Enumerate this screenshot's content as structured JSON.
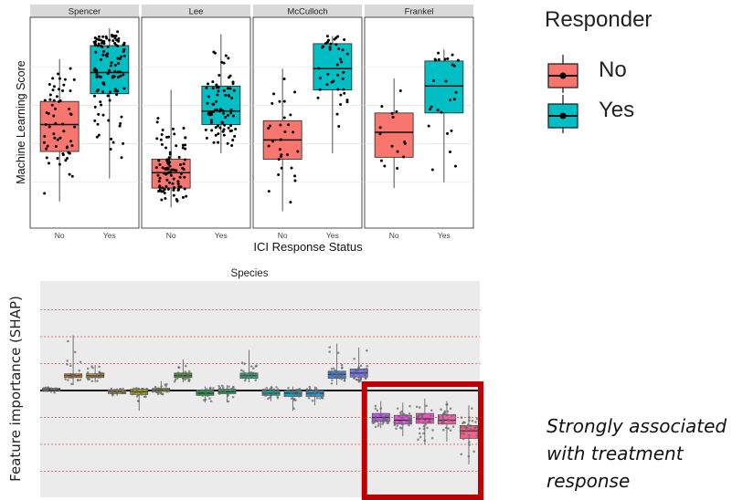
{
  "chart_data": [
    {
      "type": "box",
      "ylabel": "Machine Learning Score",
      "xlabel": "ICI Response Status",
      "panels": [
        {
          "name": "Spencer",
          "groups": [
            {
              "x": "No",
              "min": 0.1,
              "q1": 0.36,
              "median": 0.5,
              "q3": 0.62,
              "max": 0.84,
              "n": 60
            },
            {
              "x": "Yes",
              "min": 0.22,
              "q1": 0.66,
              "median": 0.77,
              "q3": 0.91,
              "max": 1.0,
              "n": 110
            }
          ]
        },
        {
          "name": "Lee",
          "groups": [
            {
              "x": "No",
              "min": 0.07,
              "q1": 0.17,
              "median": 0.25,
              "q3": 0.32,
              "max": 0.68,
              "n": 95
            },
            {
              "x": "Yes",
              "min": 0.35,
              "q1": 0.5,
              "median": 0.57,
              "q3": 0.7,
              "max": 0.97,
              "n": 80
            }
          ]
        },
        {
          "name": "McCulloch",
          "groups": [
            {
              "x": "No",
              "min": 0.05,
              "q1": 0.32,
              "median": 0.42,
              "q3": 0.52,
              "max": 0.79,
              "n": 30
            },
            {
              "x": "Yes",
              "min": 0.35,
              "q1": 0.68,
              "median": 0.79,
              "q3": 0.92,
              "max": 0.96,
              "n": 40
            }
          ]
        },
        {
          "name": "Frankel",
          "groups": [
            {
              "x": "No",
              "min": 0.17,
              "q1": 0.33,
              "median": 0.46,
              "q3": 0.56,
              "max": 0.74,
              "n": 15
            },
            {
              "x": "Yes",
              "min": 0.2,
              "q1": 0.56,
              "median": 0.7,
              "q3": 0.83,
              "max": 0.89,
              "n": 25
            }
          ]
        }
      ],
      "legend": {
        "title": "Responder",
        "position": "right",
        "entries": [
          {
            "label": "No",
            "color": "#F8766D"
          },
          {
            "label": "Yes",
            "color": "#00BFC4"
          }
        ]
      },
      "grid": true
    },
    {
      "type": "box",
      "title": "Species",
      "ylabel": "Feature importance (SHAP)",
      "xlabel": "",
      "baseline": 0,
      "series": [
        {
          "color": "#E87F6E",
          "median": 0.05,
          "q1": 0.02,
          "q3": 0.08,
          "min": -0.1,
          "max": 0.12
        },
        {
          "color": "#E0831E",
          "median": 0.55,
          "q1": 0.48,
          "q3": 0.62,
          "min": 0.2,
          "max": 2.05
        },
        {
          "color": "#D9901A",
          "median": 0.55,
          "q1": 0.48,
          "q3": 0.62,
          "min": 0.3,
          "max": 0.95
        },
        {
          "color": "#B8A11A",
          "median": -0.05,
          "q1": -0.12,
          "q3": 0.02,
          "min": -0.2,
          "max": 0.08
        },
        {
          "color": "#A4A800",
          "median": -0.05,
          "q1": -0.15,
          "q3": 0.05,
          "min": -0.75,
          "max": 0.1
        },
        {
          "color": "#7CAE00",
          "median": 0.02,
          "q1": -0.04,
          "q3": 0.08,
          "min": -0.15,
          "max": 0.35
        },
        {
          "color": "#3BA71E",
          "median": 0.55,
          "q1": 0.48,
          "q3": 0.65,
          "min": 0.3,
          "max": 1.15
        },
        {
          "color": "#00B22E",
          "median": -0.1,
          "q1": -0.18,
          "q3": 0.02,
          "min": -0.45,
          "max": 0.15
        },
        {
          "color": "#18B35A",
          "median": -0.05,
          "q1": -0.12,
          "q3": 0.05,
          "min": -0.45,
          "max": 0.2
        },
        {
          "color": "#19B98B",
          "median": 0.55,
          "q1": 0.45,
          "q3": 0.65,
          "min": 0.3,
          "max": 1.5
        },
        {
          "color": "#00B4B0",
          "median": -0.1,
          "q1": -0.18,
          "q3": 0.0,
          "min": -0.4,
          "max": 0.15
        },
        {
          "color": "#00A8D4",
          "median": -0.1,
          "q1": -0.22,
          "q3": 0.0,
          "min": -0.75,
          "max": 0.15
        },
        {
          "color": "#1E9EE8",
          "median": -0.1,
          "q1": -0.22,
          "q3": 0.0,
          "min": -0.55,
          "max": 0.15
        },
        {
          "color": "#3B82F0",
          "median": 0.6,
          "q1": 0.45,
          "q3": 0.72,
          "min": 0.2,
          "max": 1.75
        },
        {
          "color": "#7A74F0",
          "median": 0.65,
          "q1": 0.5,
          "q3": 0.8,
          "min": 0.3,
          "max": 1.6
        },
        {
          "color": "#B45CE8",
          "median": -1.0,
          "q1": -1.15,
          "q3": -0.85,
          "min": -1.4,
          "max": -0.4
        },
        {
          "color": "#DC53DA",
          "median": -1.1,
          "q1": -1.25,
          "q3": -0.92,
          "min": -1.7,
          "max": -0.45
        },
        {
          "color": "#F250BE",
          "median": -1.05,
          "q1": -1.22,
          "q3": -0.85,
          "min": -2.0,
          "max": -0.3
        },
        {
          "color": "#F05CA6",
          "median": -1.1,
          "q1": -1.25,
          "q3": -0.9,
          "min": -1.9,
          "max": -0.4
        },
        {
          "color": "#F0608A",
          "median": -1.5,
          "q1": -1.78,
          "q3": -1.3,
          "min": -2.75,
          "max": -0.55
        }
      ],
      "grid": true,
      "highlight": {
        "groups": [
          15,
          16,
          17,
          18,
          19
        ],
        "color": "#C00000"
      }
    }
  ],
  "annotation": "Strongly associated with treatment response",
  "colors": {
    "panel_bg": "#EBEBEB",
    "strip_bg": "#D9D9D9",
    "grid_red": "#E8494A"
  }
}
